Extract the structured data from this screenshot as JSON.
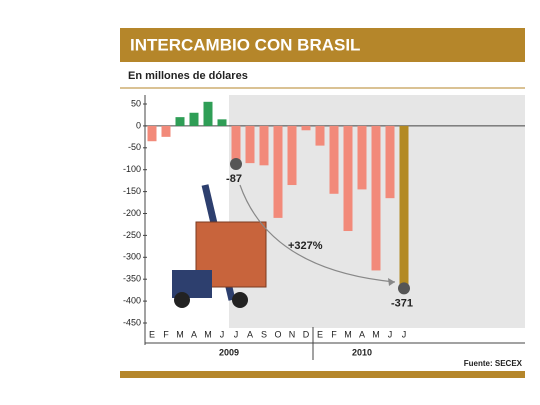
{
  "chart_data": {
    "type": "bar",
    "title": "INTERCAMBIO CON BRASIL",
    "subtitle": "En millones de dólares",
    "categories": [
      "E",
      "F",
      "M",
      "A",
      "M",
      "J",
      "J",
      "A",
      "S",
      "O",
      "N",
      "D",
      "E",
      "F",
      "M",
      "A",
      "M",
      "J",
      "J"
    ],
    "values": [
      -35,
      -25,
      20,
      30,
      55,
      15,
      -87,
      -85,
      -90,
      -210,
      -135,
      -10,
      -45,
      -155,
      -240,
      -145,
      -330,
      -165,
      -371
    ],
    "colors": [
      "#f28a7a",
      "#f28a7a",
      "#2f9e56",
      "#2f9e56",
      "#2f9e56",
      "#2f9e56",
      "#f28a7a",
      "#f28a7a",
      "#f28a7a",
      "#f28a7a",
      "#f28a7a",
      "#f28a7a",
      "#f28a7a",
      "#f28a7a",
      "#f28a7a",
      "#f28a7a",
      "#f28a7a",
      "#f28a7a",
      "#b38a22"
    ],
    "x_groups": [
      {
        "label": "2009",
        "count": 12
      },
      {
        "label": "2010",
        "count": 7
      }
    ],
    "ylim": [
      -450,
      50
    ],
    "yticks": [
      50,
      0,
      -50,
      -100,
      -150,
      -200,
      -250,
      -300,
      -350,
      -400,
      -450
    ],
    "annotation": "+327%",
    "source": "Fuente: SECEX"
  }
}
